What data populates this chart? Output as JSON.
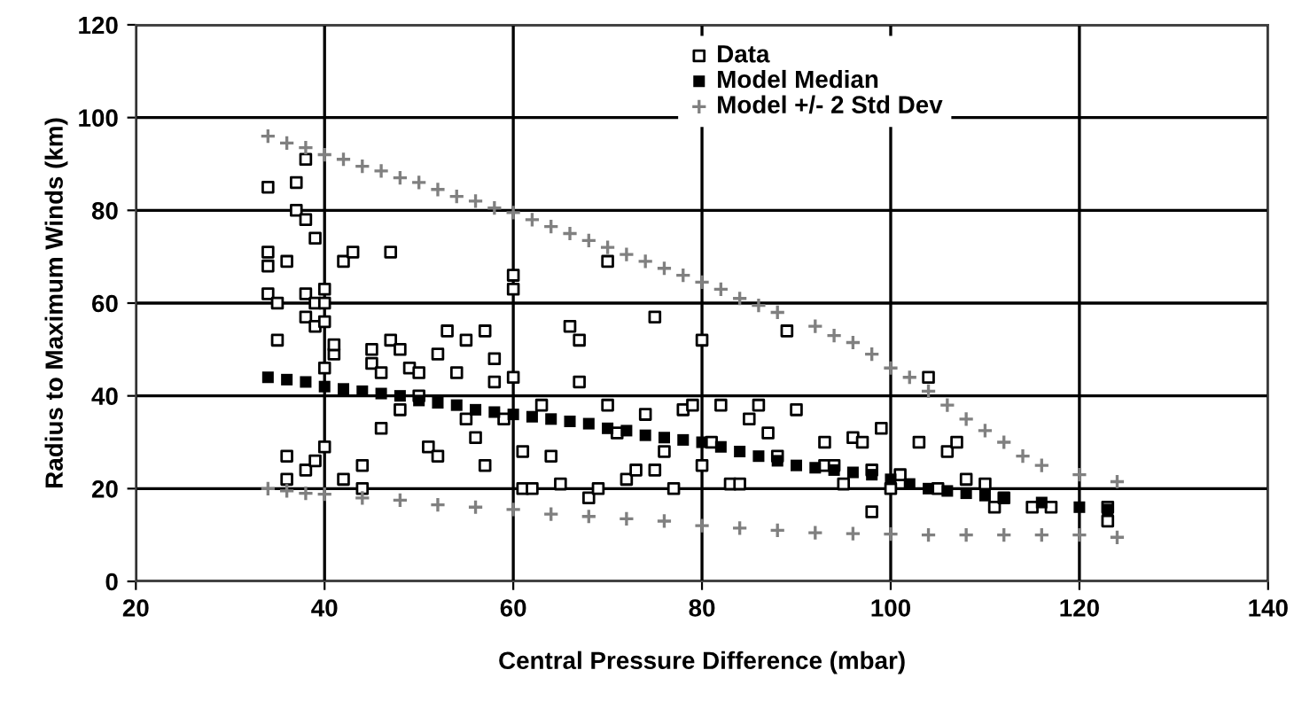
{
  "chart_data": {
    "type": "scatter",
    "xlabel": "Central Pressure Difference (mbar)",
    "ylabel": "Radius to Maximum Winds (km)",
    "xlim": [
      20,
      140
    ],
    "ylim": [
      0,
      120
    ],
    "xticks": [
      20,
      40,
      60,
      80,
      100,
      120,
      140
    ],
    "yticks": [
      0,
      20,
      40,
      60,
      80,
      100,
      120
    ],
    "grid": true,
    "legend": "top right",
    "series": [
      {
        "name": "Data",
        "color": "#000000",
        "marker": "square",
        "x": [
          34,
          34,
          34,
          34,
          35,
          35,
          36,
          36,
          36,
          37,
          37,
          38,
          38,
          38,
          38,
          38,
          39,
          39,
          39,
          39,
          40,
          40,
          40,
          40,
          40,
          41,
          41,
          42,
          42,
          43,
          44,
          44,
          45,
          45,
          46,
          46,
          47,
          47,
          48,
          48,
          49,
          50,
          50,
          51,
          52,
          52,
          53,
          54,
          55,
          55,
          56,
          57,
          57,
          58,
          58,
          59,
          60,
          60,
          60,
          61,
          61,
          62,
          63,
          64,
          65,
          66,
          67,
          67,
          68,
          69,
          70,
          70,
          71,
          72,
          73,
          74,
          75,
          75,
          76,
          77,
          78,
          79,
          80,
          80,
          81,
          82,
          83,
          84,
          85,
          86,
          87,
          88,
          89,
          90,
          93,
          93,
          94,
          95,
          96,
          97,
          98,
          98,
          99,
          100,
          101,
          103,
          104,
          105,
          106,
          107,
          108,
          110,
          111,
          112,
          115,
          117,
          123,
          123
        ],
        "values": [
          85,
          71,
          68,
          62,
          60,
          52,
          69,
          22,
          27,
          86,
          80,
          91,
          78,
          62,
          57,
          24,
          74,
          60,
          55,
          26,
          63,
          60,
          56,
          46,
          29,
          49,
          51,
          69,
          22,
          71,
          20,
          25,
          47,
          50,
          33,
          45,
          52,
          71,
          50,
          37,
          46,
          45,
          40,
          29,
          49,
          27,
          54,
          45,
          52,
          35,
          31,
          54,
          25,
          48,
          43,
          35,
          44,
          66,
          63,
          20,
          28,
          20,
          38,
          27,
          21,
          55,
          52,
          43,
          18,
          20,
          69,
          38,
          32,
          22,
          24,
          36,
          57,
          24,
          28,
          20,
          37,
          38,
          25,
          52,
          30,
          38,
          21,
          21,
          35,
          38,
          32,
          27,
          54,
          37,
          30,
          25,
          25,
          21,
          31,
          30,
          24,
          15,
          33,
          20,
          23,
          30,
          44,
          20,
          28,
          30,
          22,
          21,
          16,
          18,
          16,
          16,
          13,
          16
        ]
      },
      {
        "name": "Model Median",
        "color": "#000000",
        "marker": "square",
        "x": [
          34,
          36,
          38,
          40,
          42,
          44,
          46,
          48,
          50,
          52,
          54,
          56,
          58,
          60,
          62,
          64,
          66,
          68,
          70,
          72,
          74,
          76,
          78,
          80,
          82,
          84,
          86,
          88,
          90,
          92,
          94,
          96,
          98,
          100,
          102,
          104,
          106,
          108,
          110,
          112,
          116,
          120,
          123
        ],
        "values": [
          44,
          43.5,
          43,
          42,
          41.5,
          41,
          40.5,
          40,
          39,
          38.5,
          38,
          37,
          36.5,
          36,
          35.5,
          35,
          34.5,
          34,
          33,
          32.5,
          31.5,
          31,
          30.5,
          30,
          29,
          28,
          27,
          26,
          25,
          24.5,
          24,
          23.5,
          23,
          22,
          21,
          20,
          19.5,
          19,
          18.5,
          18,
          17,
          16,
          15.5
        ]
      },
      {
        "name": "Model +/- 2 Std Dev",
        "color": "#808080",
        "marker": "cross",
        "x": [
          34,
          36,
          38,
          40,
          42,
          44,
          46,
          48,
          50,
          52,
          54,
          56,
          58,
          60,
          62,
          64,
          66,
          68,
          70,
          72,
          74,
          76,
          78,
          80,
          82,
          84,
          86,
          88,
          92,
          94,
          96,
          98,
          100,
          102,
          104,
          106,
          108,
          110,
          112,
          114,
          116,
          120,
          124,
          34,
          36,
          38,
          40,
          44,
          48,
          52,
          56,
          60,
          64,
          68,
          72,
          76,
          80,
          84,
          88,
          92,
          96,
          100,
          104,
          108,
          112,
          116,
          120,
          124
        ],
        "values": [
          96,
          94.5,
          93.5,
          92,
          91,
          89.5,
          88.5,
          87,
          86,
          84.5,
          83,
          82,
          80.5,
          79.5,
          78,
          76.5,
          75,
          73.5,
          72,
          70.5,
          69,
          67.5,
          66,
          64.5,
          63,
          61,
          59.5,
          58,
          55,
          53,
          51.5,
          49,
          46,
          44,
          41,
          38,
          35,
          32.5,
          30,
          27,
          25,
          23,
          21.5,
          20,
          19.5,
          19,
          18.8,
          18,
          17.5,
          16.5,
          16,
          15.5,
          14.5,
          14,
          13.5,
          13,
          12,
          11.5,
          11,
          10.5,
          10.3,
          10.2,
          10,
          10,
          10,
          10,
          10,
          9.5
        ]
      }
    ]
  }
}
